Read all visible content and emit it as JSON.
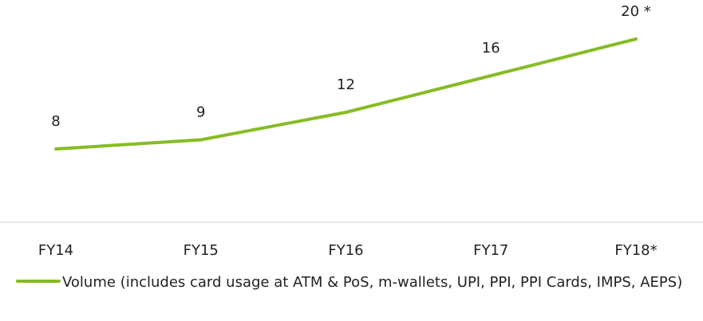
{
  "chart_data": {
    "type": "line",
    "categories": [
      "FY14",
      "FY15",
      "FY16",
      "FY17",
      "FY18*"
    ],
    "series": [
      {
        "name": "Volume (includes card usage at ATM & PoS, m-wallets, UPI, PPI, PPI Cards, IMPS, AEPS)",
        "color": "#86bc25",
        "values": [
          8,
          9,
          12,
          16,
          20
        ],
        "value_labels": [
          "8",
          "9",
          "12",
          "16",
          "20 *"
        ]
      }
    ],
    "ylim": [
      0,
      22
    ],
    "grid": false
  }
}
